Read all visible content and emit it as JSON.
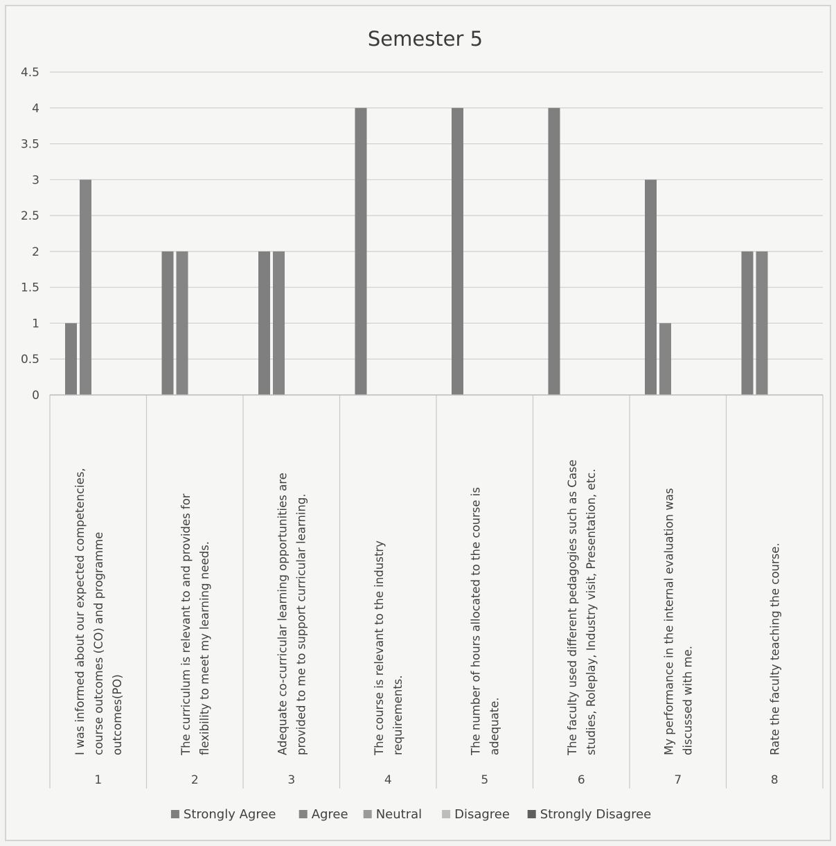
{
  "chart_data": {
    "type": "bar",
    "title": "Semester 5",
    "xlabel": "",
    "ylabel": "",
    "ylim": [
      0,
      4.5
    ],
    "yticks": [
      "0",
      "0.5",
      "1",
      "1.5",
      "2",
      "2.5",
      "3",
      "3.5",
      "4",
      "4.5"
    ],
    "grid": true,
    "legend_position": "bottom",
    "categories": [
      "1",
      "2",
      "3",
      "4",
      "5",
      "6",
      "7",
      "8"
    ],
    "category_labels": [
      [
        "I was informed about our expected competencies,",
        "course outcomes (CO) and programme",
        "outcomes(PO)"
      ],
      [
        "The curriculum is relevant to and provides for",
        "flexibility to meet my learning needs."
      ],
      [
        "Adequate co-curricular learning opportunities are",
        "provided to me to support curricular learning."
      ],
      [
        "The course is relevant to the industry",
        "requirements."
      ],
      [
        "The number of hours allocated to the course is",
        "adequate."
      ],
      [
        "The faculty used different pedagogies such as Case",
        "studies, Roleplay, Industry visit, Presentation, etc."
      ],
      [
        "My performance in the internal evaluation was",
        "discussed with me."
      ],
      [
        "Rate the faculty teaching the course."
      ]
    ],
    "series": [
      {
        "name": "Strongly Agree",
        "color": "#7f7f7f",
        "values": [
          1,
          2,
          2,
          4,
          4,
          4,
          3,
          2
        ]
      },
      {
        "name": "Agree",
        "color": "#858585",
        "values": [
          3,
          2,
          2,
          0,
          0,
          0,
          1,
          2
        ]
      },
      {
        "name": "Neutral",
        "color": "#9a9a9a",
        "values": [
          0,
          0,
          0,
          0,
          0,
          0,
          0,
          0
        ]
      },
      {
        "name": "Disagree",
        "color": "#bdbdbd",
        "values": [
          0,
          0,
          0,
          0,
          0,
          0,
          0,
          0
        ]
      },
      {
        "name": "Strongly Disagree",
        "color": "#5f5f5f",
        "values": [
          0,
          0,
          0,
          0,
          0,
          0,
          0,
          0
        ]
      }
    ]
  }
}
